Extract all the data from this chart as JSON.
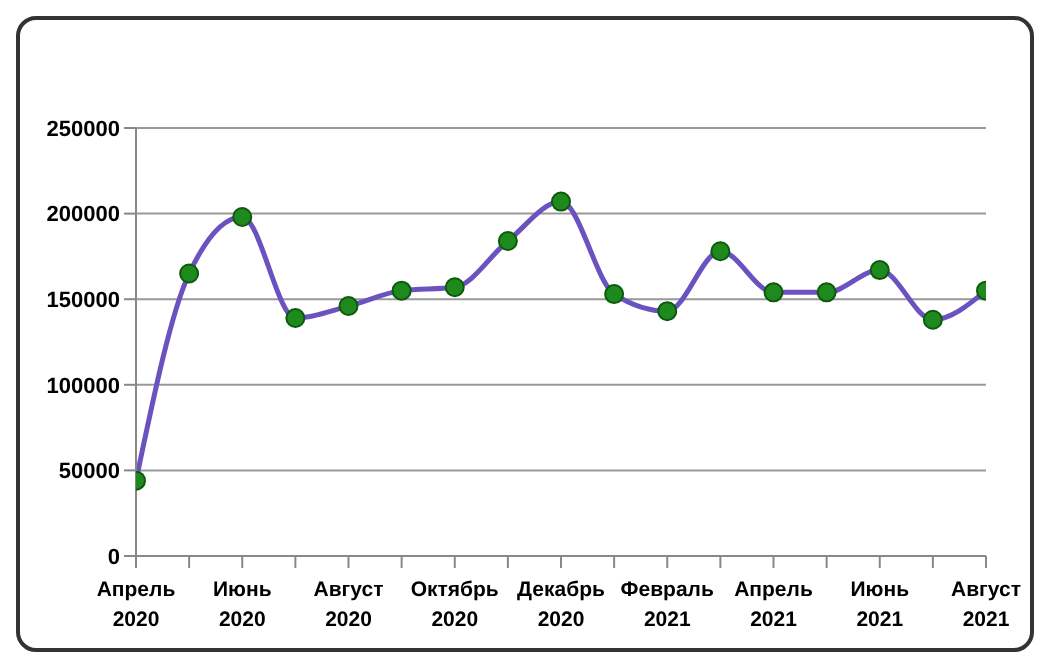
{
  "chart_data": {
    "type": "line",
    "categories": [
      "Апрель 2020",
      null,
      "Июнь 2020",
      null,
      "Август 2020",
      null,
      "Октябрь 2020",
      null,
      "Декабрь 2020",
      null,
      "Февраль 2021",
      null,
      "Апрель 2021",
      null,
      "Июнь 2021",
      null,
      "Август 2021"
    ],
    "series": [
      {
        "color": "#6a52c0",
        "values": [
          44000,
          165000,
          198000,
          139000,
          146000,
          155000,
          157000,
          184000,
          207000,
          153000,
          143000,
          178000,
          154000,
          154000,
          167000,
          138000,
          155000
        ]
      }
    ],
    "ylim": [
      0,
      250000
    ],
    "yticks": [
      0,
      50000,
      100000,
      150000,
      200000,
      250000
    ],
    "grid": "y",
    "marker": "circle"
  }
}
